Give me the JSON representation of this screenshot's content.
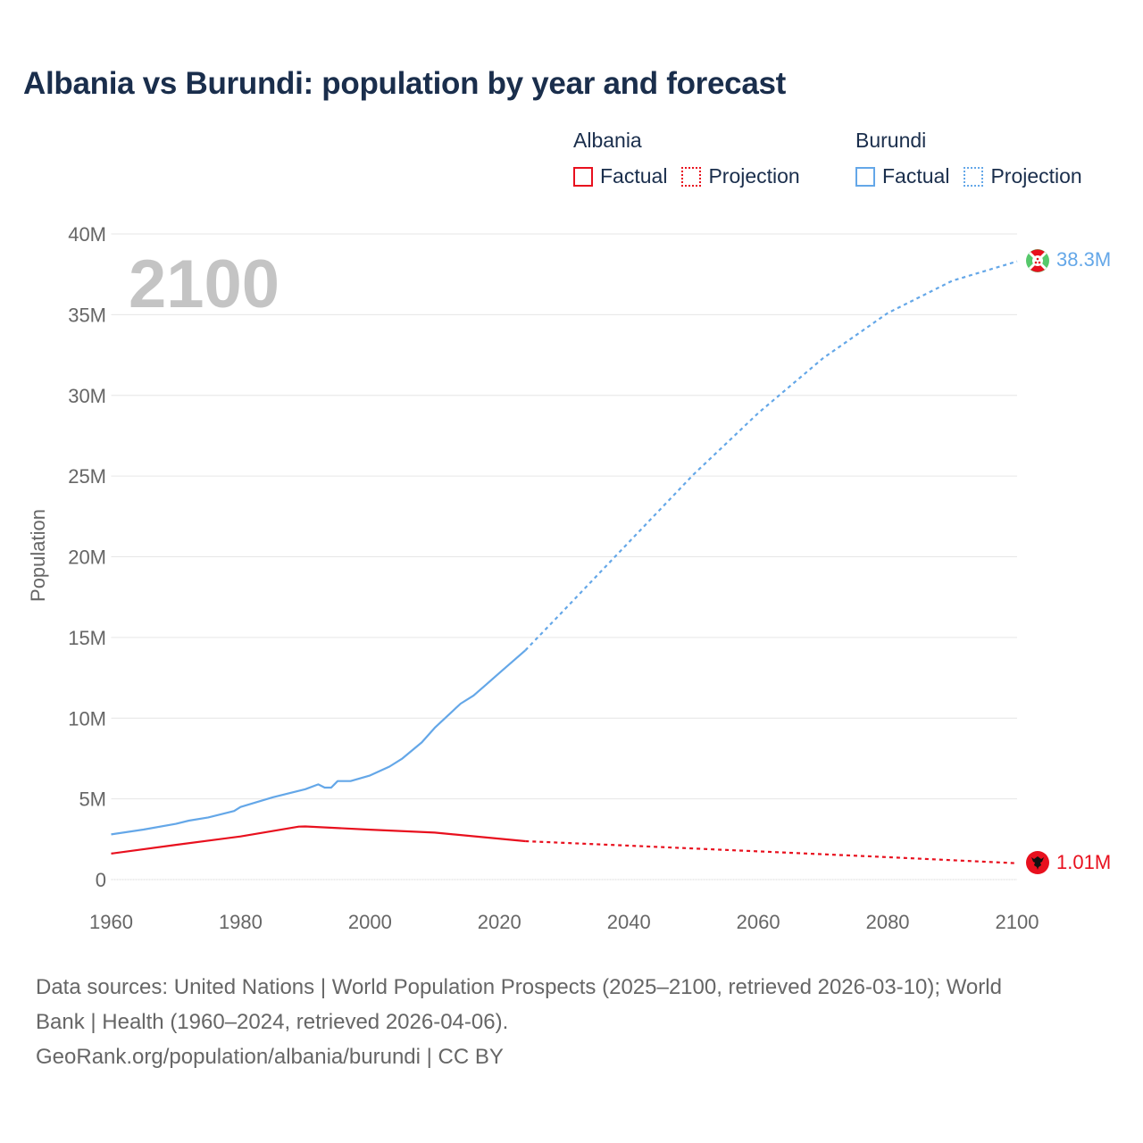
{
  "header": {
    "title": "Albania vs Burundi: population by year and forecast"
  },
  "legend": {
    "groups": [
      {
        "name": "Albania",
        "color": "#e8101e",
        "items": [
          {
            "label": "Factual",
            "style": "solid"
          },
          {
            "label": "Projection",
            "style": "dotted"
          }
        ]
      },
      {
        "name": "Burundi",
        "color": "#64a7e8",
        "items": [
          {
            "label": "Factual",
            "style": "solid"
          },
          {
            "label": "Projection",
            "style": "dotted"
          }
        ]
      }
    ]
  },
  "overlay": {
    "year": "2100"
  },
  "end_labels": {
    "burundi": "38.3M",
    "albania": "1.01M"
  },
  "axes": {
    "y_title": "Population",
    "y_ticks": [
      "0",
      "5M",
      "10M",
      "15M",
      "20M",
      "25M",
      "30M",
      "35M",
      "40M"
    ],
    "x_ticks": [
      "1960",
      "1980",
      "2000",
      "2020",
      "2040",
      "2060",
      "2080",
      "2100"
    ]
  },
  "footer": {
    "line1": "Data sources: United Nations | World Population Prospects (2025–2100, retrieved 2026-03-10); World",
    "line2": "Bank | Health (1960–2024, retrieved 2026-04-06).",
    "line3": "GeoRank.org/population/albania/burundi | CC BY"
  },
  "chart_data": {
    "type": "line",
    "title": "Albania vs Burundi: population by year and forecast",
    "xlabel": "",
    "ylabel": "Population",
    "xlim": [
      1960,
      2100
    ],
    "ylim": [
      0,
      40000000
    ],
    "grid": true,
    "legend_position": "top-right",
    "series": [
      {
        "name": "Albania Factual",
        "color": "#e8101e",
        "style": "solid",
        "x": [
          1960,
          1970,
          1980,
          1989,
          1990,
          2000,
          2010,
          2024
        ],
        "values": [
          1610000,
          2150000,
          2670000,
          3280000,
          3290000,
          3090000,
          2910000,
          2380000
        ]
      },
      {
        "name": "Albania Projection",
        "color": "#e8101e",
        "style": "dotted",
        "x": [
          2024,
          2040,
          2060,
          2080,
          2100
        ],
        "values": [
          2380000,
          2100000,
          1750000,
          1390000,
          1010000
        ]
      },
      {
        "name": "Burundi Factual",
        "color": "#64a7e8",
        "style": "solid",
        "x": [
          1960,
          1965,
          1970,
          1972,
          1975,
          1979,
          1980,
          1985,
          1990,
          1992,
          1993,
          1994,
          1995,
          1997,
          2000,
          2003,
          2005,
          2008,
          2010,
          2014,
          2016,
          2018,
          2020,
          2024
        ],
        "values": [
          2800000,
          3100000,
          3450000,
          3650000,
          3850000,
          4250000,
          4500000,
          5100000,
          5600000,
          5900000,
          5700000,
          5700000,
          6100000,
          6100000,
          6450000,
          7000000,
          7500000,
          8500000,
          9400000,
          10900000,
          11400000,
          12100000,
          12800000,
          14200000
        ]
      },
      {
        "name": "Burundi Projection",
        "color": "#64a7e8",
        "style": "dotted",
        "x": [
          2024,
          2030,
          2040,
          2050,
          2060,
          2070,
          2080,
          2090,
          2100
        ],
        "values": [
          14200000,
          16700000,
          20900000,
          25100000,
          28900000,
          32300000,
          35100000,
          37100000,
          38300000
        ]
      }
    ],
    "annotations": [
      {
        "text": "2100",
        "type": "current-year"
      },
      {
        "text": "38.3M",
        "series": "Burundi",
        "x": 2100
      },
      {
        "text": "1.01M",
        "series": "Albania",
        "x": 2100
      }
    ]
  }
}
